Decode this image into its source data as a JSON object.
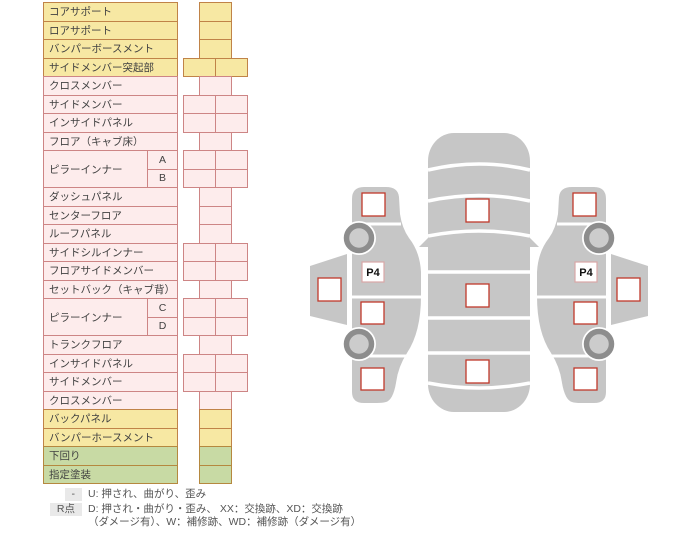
{
  "table": {
    "rows": [
      {
        "label": "コアサポート",
        "color": "yellow",
        "cells": 1
      },
      {
        "label": "ロアサポート",
        "color": "yellow",
        "cells": 1
      },
      {
        "label": "バンパーボースメント",
        "color": "yellow",
        "cells": 1
      },
      {
        "label": "サイドメンバー突起部",
        "color": "yellow",
        "cells": 2
      },
      {
        "label": "クロスメンバー",
        "color": "pink",
        "cells": 1
      },
      {
        "label": "サイドメンバー",
        "color": "pink",
        "cells": 2
      },
      {
        "label": "インサイドパネル",
        "color": "pink",
        "cells": 2
      },
      {
        "label": "フロア（キャブ床）",
        "color": "pink",
        "cells": 1
      },
      {
        "label": "ピラーインナー",
        "color": "pink",
        "cells": 2,
        "subs": [
          "A",
          "B"
        ]
      },
      {
        "label": "ダッシュパネル",
        "color": "pink",
        "cells": 1
      },
      {
        "label": "センターフロア",
        "color": "pink",
        "cells": 1
      },
      {
        "label": "ルーフパネル",
        "color": "pink",
        "cells": 1
      },
      {
        "label": "サイドシルインナー",
        "color": "pink",
        "cells": 2
      },
      {
        "label": "フロアサイドメンバー",
        "color": "pink",
        "cells": 2
      },
      {
        "label": "セットバック（キャブ背）",
        "color": "pink",
        "cells": 1
      },
      {
        "label": "ピラーインナー",
        "color": "pink",
        "cells": 2,
        "subs": [
          "C",
          "D"
        ]
      },
      {
        "label": "トランクフロア",
        "color": "pink",
        "cells": 1
      },
      {
        "label": "インサイドパネル",
        "color": "pink",
        "cells": 2
      },
      {
        "label": "サイドメンバー",
        "color": "pink",
        "cells": 2
      },
      {
        "label": "クロスメンバー",
        "color": "pink",
        "cells": 1
      },
      {
        "label": "バックパネル",
        "color": "yellow",
        "cells": 1
      },
      {
        "label": "バンパーホースメント",
        "color": "yellow",
        "cells": 1
      },
      {
        "label": "下回り",
        "color": "green",
        "cells": 1
      },
      {
        "label": "指定塗装",
        "color": "green",
        "cells": 1
      }
    ]
  },
  "diagram": {
    "left_view": {
      "p4_label": "P4"
    },
    "right_view": {
      "p4_label": "P4"
    },
    "colors": {
      "body_gray": "#c6c6c6",
      "wheel_ring": "#8d8d8d",
      "wheel_hub": "#cccccc",
      "marker_border": "#c0392b",
      "p4_border": "#d9a7a7"
    }
  },
  "legend": {
    "rows": [
      {
        "badge": "-",
        "lines": [
          "U: 押され、曲がり、歪み"
        ]
      },
      {
        "badge": "R点",
        "lines": [
          "D: 押され・曲がり・歪み、 XX：交換跡、XD：交換跡",
          "（ダメージ有）、W：補修跡、WD：補修跡（ダメージ有）"
        ]
      }
    ]
  },
  "palette": {
    "yellow_bg": "#f7e8a3",
    "yellow_border": "#c08348",
    "pink_bg": "#fdecec",
    "pink_border": "#cd8585",
    "green_bg": "#c8daa4",
    "green_border": "#b5883f",
    "badge_bg": "#e9e9e9"
  }
}
